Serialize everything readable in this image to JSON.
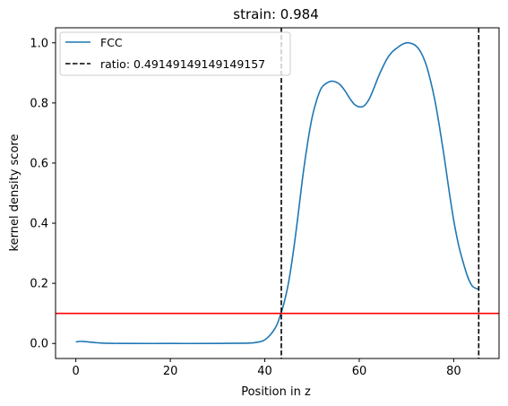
{
  "chart_data": {
    "type": "line",
    "title": "strain: 0.984",
    "xlabel": "Position in z",
    "ylabel": "kernel density score",
    "xlim": [
      -4.3,
      89.6
    ],
    "ylim": [
      -0.05,
      1.05
    ],
    "xticks": [
      0,
      20,
      40,
      60,
      80
    ],
    "xtick_labels": [
      "0",
      "20",
      "40",
      "60",
      "80"
    ],
    "yticks": [
      0.0,
      0.2,
      0.4,
      0.6,
      0.8,
      1.0
    ],
    "ytick_labels": [
      "0.0",
      "0.2",
      "0.4",
      "0.6",
      "0.8",
      "1.0"
    ],
    "grid": false,
    "legend_position": "top-left",
    "series": [
      {
        "name": "FCC",
        "color": "#1f77b4",
        "style": "solid",
        "x": [
          0,
          1,
          2,
          4,
          6,
          10,
          20,
          30,
          36,
          38,
          39.5,
          40.5,
          41.5,
          42.5,
          43.2,
          44,
          45,
          46,
          47,
          48,
          49,
          50,
          51,
          52,
          53,
          54,
          55,
          56,
          57,
          58,
          59,
          60,
          61,
          62,
          63,
          64,
          65,
          66,
          67,
          68,
          69,
          70,
          71,
          72,
          73,
          74,
          75,
          76,
          77,
          78,
          79,
          80,
          81,
          82,
          83,
          84,
          85.3
        ],
        "y": [
          0.005,
          0.007,
          0.006,
          0.003,
          0.001,
          0.0,
          0.0,
          0.0,
          0.001,
          0.003,
          0.008,
          0.018,
          0.035,
          0.06,
          0.09,
          0.13,
          0.2,
          0.3,
          0.42,
          0.55,
          0.66,
          0.75,
          0.81,
          0.85,
          0.865,
          0.872,
          0.87,
          0.86,
          0.84,
          0.815,
          0.795,
          0.787,
          0.79,
          0.81,
          0.845,
          0.885,
          0.92,
          0.95,
          0.97,
          0.983,
          0.994,
          1.0,
          0.998,
          0.99,
          0.97,
          0.935,
          0.88,
          0.81,
          0.72,
          0.62,
          0.51,
          0.41,
          0.33,
          0.27,
          0.22,
          0.19,
          0.18
        ]
      },
      {
        "name": "ratio: 0.49149149149149157",
        "color": "#000000",
        "style": "dashed",
        "vlines": [
          43.5,
          85.3
        ]
      }
    ],
    "hlines": [
      {
        "y": 0.1,
        "color": "#ff0000"
      }
    ]
  }
}
